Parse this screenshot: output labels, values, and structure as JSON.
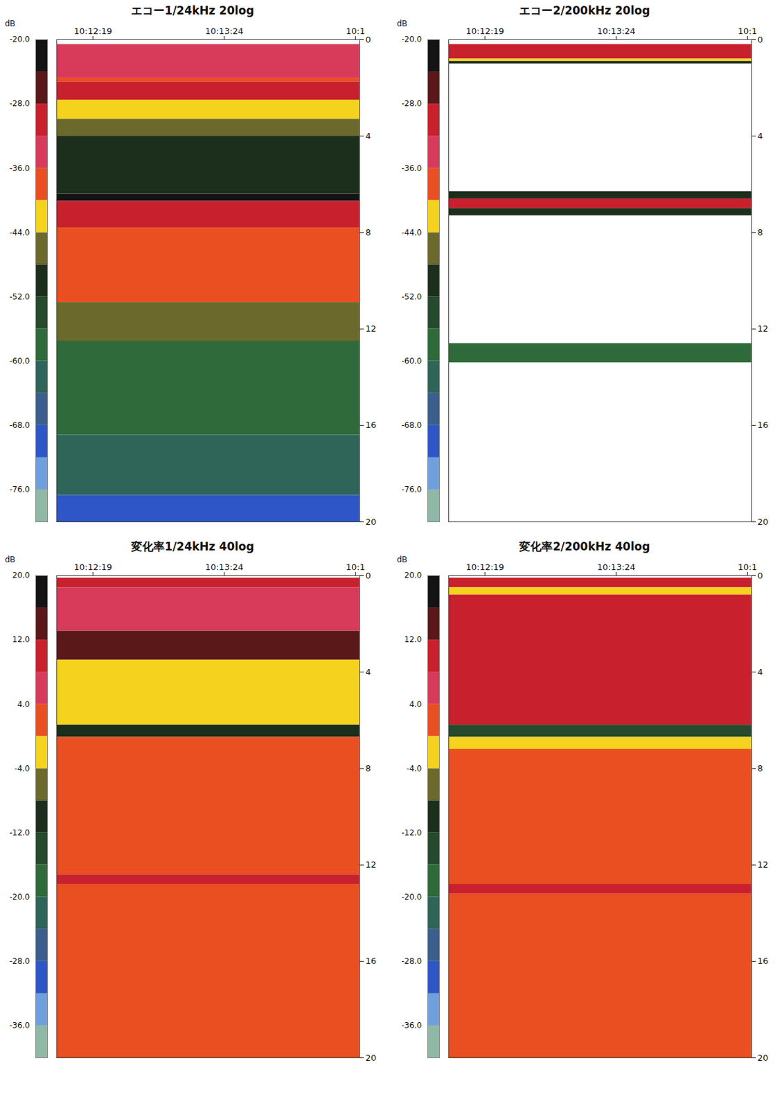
{
  "chart_data": [
    {
      "type": "heatmap",
      "title": "エコー1/24kHz 20log",
      "xlim": [
        "10:12:01",
        "10:14:31"
      ],
      "xticks": [
        "10:12:19",
        "10:13:24",
        {
          "value": "10:14:29",
          "label": "10:1"
        }
      ],
      "ylim": [
        0,
        20
      ],
      "yticks": [
        0,
        4,
        8,
        12,
        16,
        20
      ],
      "colorbar": {
        "label": "dB",
        "range": [
          -80,
          -20
        ],
        "ticks": [
          {
            "value": -20,
            "label": "-20.0"
          },
          {
            "value": -28,
            "label": "-28.0"
          },
          {
            "value": -36,
            "label": "-36.0"
          },
          {
            "value": -44,
            "label": "-44.0"
          },
          {
            "value": -52,
            "label": "-52.0"
          },
          {
            "value": -60,
            "label": "-60.0"
          },
          {
            "value": -68,
            "label": "-68.0"
          },
          {
            "value": -76,
            "label": "-76.0"
          }
        ],
        "colors": [
          "#8fb8a6",
          "#6f9fdc",
          "#2f56c6",
          "#3b5f8c",
          "#2f6458",
          "#2e6a3a",
          "#254a2c",
          "#1c2e1c",
          "#6b6a2c",
          "#f4d21e",
          "#ea4f22",
          "#d83a5a",
          "#c8202c",
          "#5a1818",
          "#141414"
        ]
      },
      "cells": [
        {
          "y0": 0.2,
          "y1": 1.6,
          "value": -34
        },
        {
          "y0": 1.6,
          "y1": 1.75,
          "value": -38
        },
        {
          "y0": 1.75,
          "y1": 2.5,
          "value": -30
        },
        {
          "y0": 2.5,
          "y1": 3.3,
          "value": -42
        },
        {
          "y0": 3.3,
          "y1": 4.0,
          "value": -46
        },
        {
          "y0": 4.0,
          "y1": 6.4,
          "value": -50
        },
        {
          "y0": 6.4,
          "y1": 6.7,
          "value": -22
        },
        {
          "y0": 6.7,
          "y1": 7.8,
          "value": -30
        },
        {
          "y0": 7.8,
          "y1": 10.9,
          "value": -39
        },
        {
          "y0": 10.9,
          "y1": 12.5,
          "value": -47
        },
        {
          "y0": 12.5,
          "y1": 16.4,
          "value": -57
        },
        {
          "y0": 16.4,
          "y1": 18.9,
          "value": -64
        },
        {
          "y0": 18.9,
          "y1": 20,
          "value": -70
        }
      ]
    },
    {
      "type": "heatmap",
      "title": "エコー2/200kHz 20log",
      "xlim": [
        "10:12:01",
        "10:14:31"
      ],
      "xticks": [
        "10:12:19",
        "10:13:24",
        {
          "value": "10:14:29",
          "label": "10:1"
        }
      ],
      "ylim": [
        0,
        20
      ],
      "yticks": [
        0,
        4,
        8,
        12,
        16,
        20
      ],
      "colorbar": {
        "label": "dB",
        "range": [
          -80,
          -20
        ],
        "ticks": [
          {
            "value": -20,
            "label": "-20.0"
          },
          {
            "value": -28,
            "label": "-28.0"
          },
          {
            "value": -36,
            "label": "-36.0"
          },
          {
            "value": -44,
            "label": "-44.0"
          },
          {
            "value": -52,
            "label": "-52.0"
          },
          {
            "value": -60,
            "label": "-60.0"
          },
          {
            "value": -68,
            "label": "-68.0"
          },
          {
            "value": -76,
            "label": "-76.0"
          }
        ],
        "colors": [
          "#8fb8a6",
          "#6f9fdc",
          "#2f56c6",
          "#3b5f8c",
          "#2f6458",
          "#2e6a3a",
          "#254a2c",
          "#1c2e1c",
          "#6b6a2c",
          "#f4d21e",
          "#ea4f22",
          "#d83a5a",
          "#c8202c",
          "#5a1818",
          "#141414"
        ]
      },
      "cells": [
        {
          "y0": 0.2,
          "y1": 0.8,
          "value": -30
        },
        {
          "y0": 0.8,
          "y1": 0.9,
          "value": -42
        },
        {
          "y0": 0.9,
          "y1": 1.0,
          "value": -50
        },
        {
          "y0": 6.3,
          "y1": 6.6,
          "value": -50
        },
        {
          "y0": 6.6,
          "y1": 7.0,
          "value": -30
        },
        {
          "y0": 7.0,
          "y1": 7.3,
          "value": -52
        },
        {
          "y0": 12.6,
          "y1": 13.4,
          "value": -58
        }
      ]
    },
    {
      "type": "heatmap",
      "title": "変化率1/24kHz 40log",
      "xlim": [
        "10:12:01",
        "10:14:31"
      ],
      "xticks": [
        "10:12:19",
        "10:13:24",
        {
          "value": "10:14:29",
          "label": "10:1"
        }
      ],
      "ylim": [
        0,
        20
      ],
      "yticks": [
        0,
        4,
        8,
        12,
        16,
        20
      ],
      "colorbar": {
        "label": "dB",
        "range": [
          -40,
          20
        ],
        "ticks": [
          {
            "value": 20,
            "label": "20.0"
          },
          {
            "value": 12,
            "label": "12.0"
          },
          {
            "value": 4,
            "label": "4.0"
          },
          {
            "value": -4,
            "label": "-4.0"
          },
          {
            "value": -12,
            "label": "-12.0"
          },
          {
            "value": -20,
            "label": "-20.0"
          },
          {
            "value": -28,
            "label": "-28.0"
          },
          {
            "value": -36,
            "label": "-36.0"
          }
        ],
        "colors": [
          "#8fb8a6",
          "#6f9fdc",
          "#2f56c6",
          "#3b5f8c",
          "#2f6458",
          "#2e6a3a",
          "#254a2c",
          "#1c2e1c",
          "#6b6a2c",
          "#f4d21e",
          "#ea4f22",
          "#d83a5a",
          "#c8202c",
          "#5a1818",
          "#141414"
        ]
      },
      "cells": [
        {
          "y0": 0.1,
          "y1": 0.5,
          "value": 10
        },
        {
          "y0": 0.5,
          "y1": 2.3,
          "value": 6
        },
        {
          "y0": 2.3,
          "y1": 3.5,
          "value": 13
        },
        {
          "y0": 3.5,
          "y1": 6.2,
          "value": -1
        },
        {
          "y0": 6.2,
          "y1": 6.7,
          "value": -12
        },
        {
          "y0": 6.7,
          "y1": 12.4,
          "value": 1
        },
        {
          "y0": 12.4,
          "y1": 12.8,
          "value": 9
        },
        {
          "y0": 12.8,
          "y1": 20,
          "value": 1
        }
      ]
    },
    {
      "type": "heatmap",
      "title": "変化率2/200kHz 40log",
      "xlim": [
        "10:12:01",
        "10:14:31"
      ],
      "xticks": [
        "10:12:19",
        "10:13:24",
        {
          "value": "10:14:29",
          "label": "10:1"
        }
      ],
      "ylim": [
        0,
        20
      ],
      "yticks": [
        0,
        4,
        8,
        12,
        16,
        20
      ],
      "colorbar": {
        "label": "dB",
        "range": [
          -40,
          20
        ],
        "ticks": [
          {
            "value": 20,
            "label": "20.0"
          },
          {
            "value": 12,
            "label": "12.0"
          },
          {
            "value": 4,
            "label": "4.0"
          },
          {
            "value": -4,
            "label": "-4.0"
          },
          {
            "value": -12,
            "label": "-12.0"
          },
          {
            "value": -20,
            "label": "-20.0"
          },
          {
            "value": -28,
            "label": "-28.0"
          },
          {
            "value": -36,
            "label": "-36.0"
          }
        ],
        "colors": [
          "#8fb8a6",
          "#6f9fdc",
          "#2f56c6",
          "#3b5f8c",
          "#2f6458",
          "#2e6a3a",
          "#254a2c",
          "#1c2e1c",
          "#6b6a2c",
          "#f4d21e",
          "#ea4f22",
          "#d83a5a",
          "#c8202c",
          "#5a1818",
          "#141414"
        ]
      },
      "cells": [
        {
          "y0": 0.1,
          "y1": 0.5,
          "value": 10
        },
        {
          "y0": 0.5,
          "y1": 0.8,
          "value": -1
        },
        {
          "y0": 0.8,
          "y1": 6.2,
          "value": 9
        },
        {
          "y0": 6.2,
          "y1": 6.7,
          "value": -14
        },
        {
          "y0": 6.7,
          "y1": 7.2,
          "value": -2
        },
        {
          "y0": 7.2,
          "y1": 12.8,
          "value": 2
        },
        {
          "y0": 12.8,
          "y1": 13.2,
          "value": 9
        },
        {
          "y0": 13.2,
          "y1": 20,
          "value": 1
        }
      ]
    }
  ]
}
